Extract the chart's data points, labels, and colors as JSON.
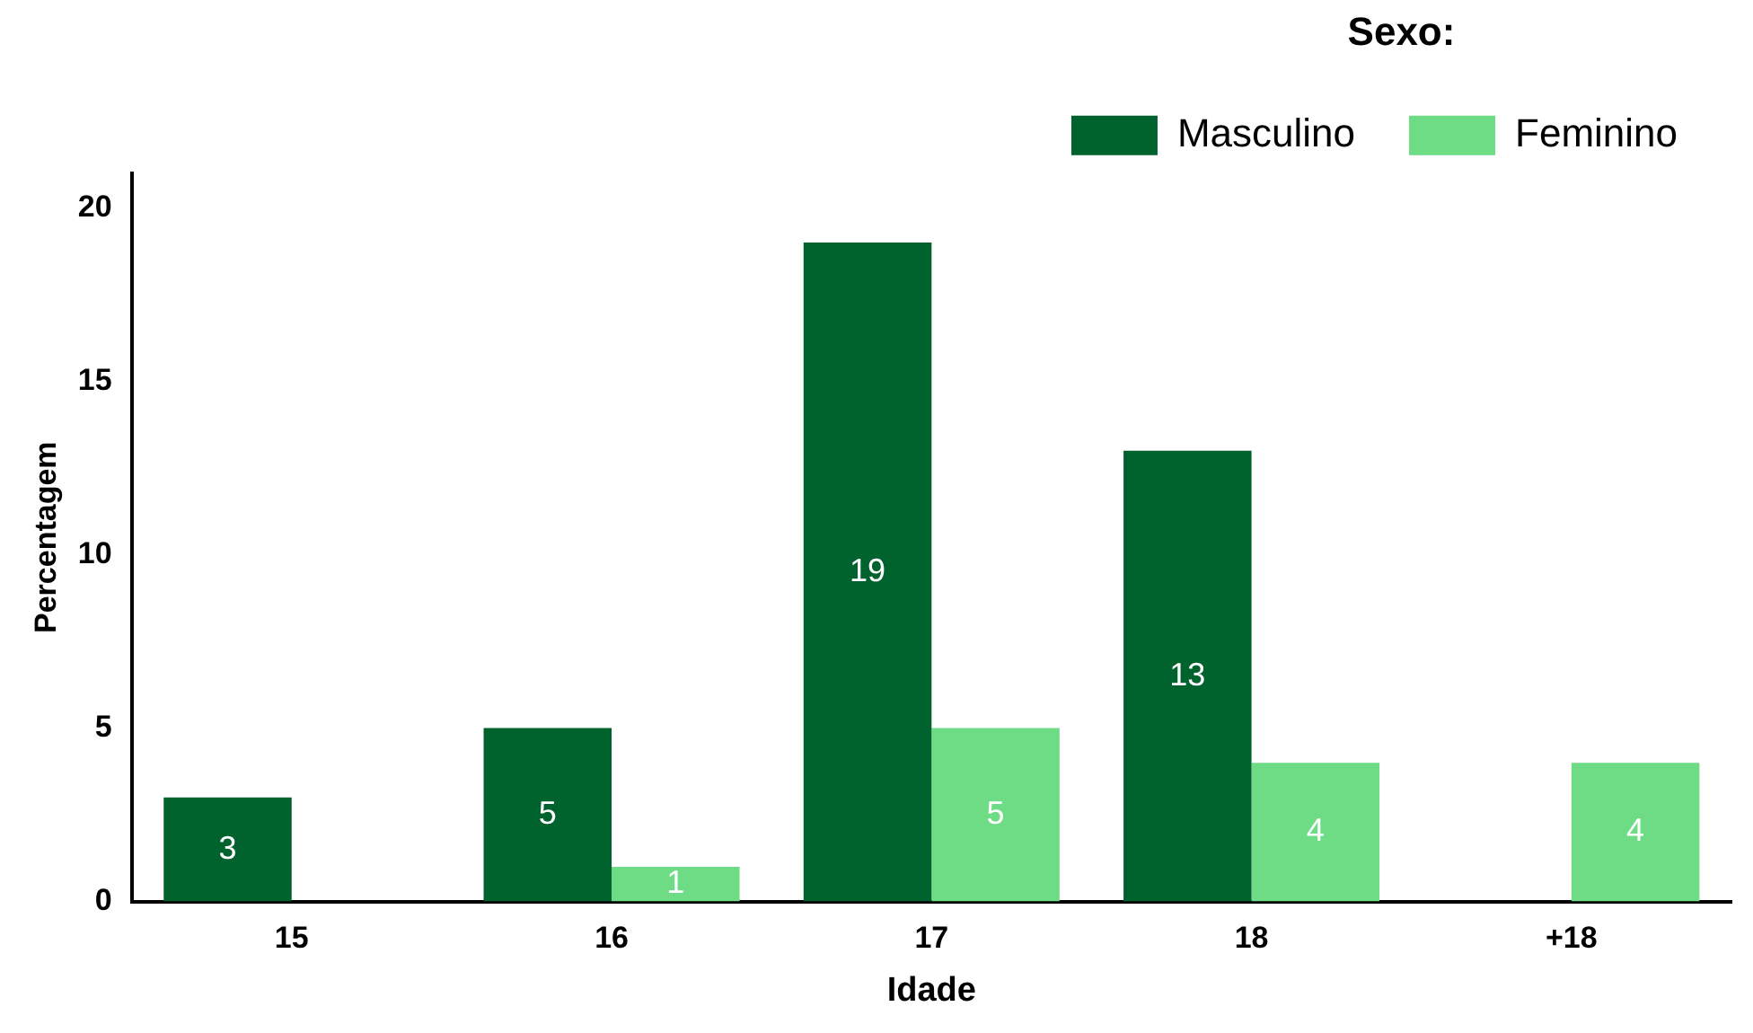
{
  "chart_data": {
    "type": "bar",
    "xlabel": "Idade",
    "ylabel": "Percentagem",
    "legend_title": "Sexo:",
    "legend": "top right",
    "categories": [
      "15",
      "16",
      "17",
      "18",
      "+18"
    ],
    "series": [
      {
        "name": "Masculino",
        "color": "#00632e",
        "values": [
          3,
          5,
          19,
          13,
          null
        ]
      },
      {
        "name": "Feminino",
        "color": "#6ddc85",
        "values": [
          null,
          1,
          5,
          4,
          4
        ]
      }
    ],
    "ylim": [
      0,
      21
    ],
    "yticks": [
      0,
      5,
      10,
      15,
      20
    ],
    "grid": false,
    "data_labels": true
  }
}
